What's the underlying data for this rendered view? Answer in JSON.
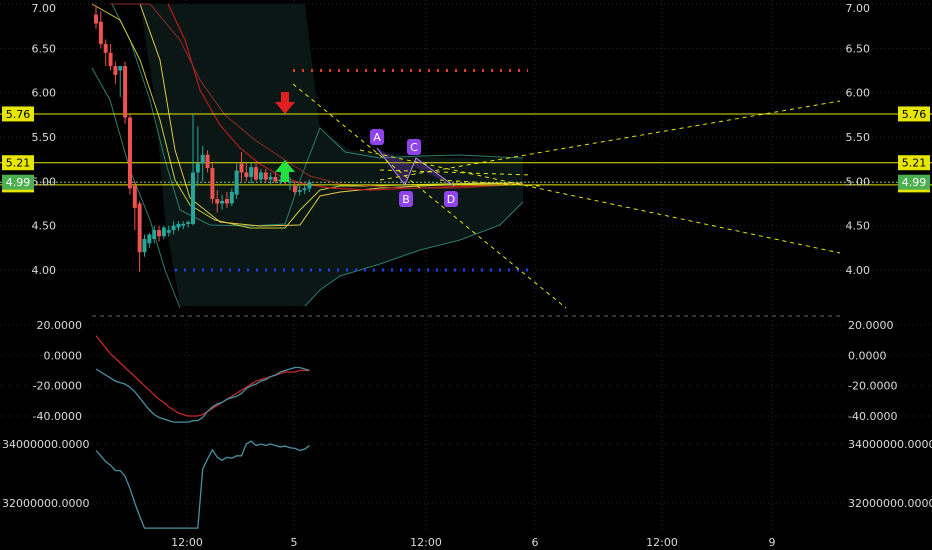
{
  "chart_data": {
    "type": "candlestick",
    "colors": {
      "up": "#26a69a",
      "down": "#ef5350",
      "hline": "#e6e600",
      "last": "#4caf50",
      "point": "#8e44ec"
    },
    "x_ticks": [
      "12:00",
      "5",
      "12:00",
      "6",
      "12:00",
      "9"
    ],
    "price": {
      "y_ticks": [
        "7.00",
        "6.50",
        "6.00",
        "5.50",
        "5.00",
        "4.50",
        "4.00"
      ],
      "y_tick_values": [
        7.0,
        6.5,
        6.0,
        5.5,
        5.0,
        4.5,
        4.0
      ],
      "ylim": [
        3.53,
        7.04
      ],
      "levels": [
        {
          "label": "5.76",
          "value": 5.76
        },
        {
          "label": "5.21",
          "value": 5.21
        },
        {
          "label": "4.96",
          "value": 4.96
        }
      ],
      "last_price": {
        "label": "4.99",
        "value": 4.99
      },
      "target_high": 6.25,
      "target_low": 4.0,
      "pattern_points": [
        "A",
        "B",
        "C",
        "D"
      ],
      "candles": [
        [
          6.88,
          6.98,
          6.72,
          6.78
        ],
        [
          6.8,
          6.92,
          6.5,
          6.55
        ],
        [
          6.55,
          6.6,
          6.3,
          6.45
        ],
        [
          6.45,
          6.55,
          6.25,
          6.3
        ],
        [
          6.3,
          6.35,
          6.1,
          6.2
        ],
        [
          6.25,
          6.3,
          5.95,
          6.3
        ],
        [
          6.3,
          6.35,
          5.65,
          5.72
        ],
        [
          5.72,
          5.75,
          4.85,
          4.92
        ],
        [
          4.95,
          5.0,
          4.45,
          4.7
        ],
        [
          4.75,
          4.78,
          3.98,
          4.2
        ],
        [
          4.2,
          4.4,
          4.15,
          4.35
        ],
        [
          4.3,
          4.42,
          4.25,
          4.4
        ],
        [
          4.35,
          4.5,
          4.3,
          4.45
        ],
        [
          4.45,
          4.5,
          4.32,
          4.38
        ],
        [
          4.38,
          4.5,
          4.35,
          4.48
        ],
        [
          4.42,
          4.5,
          4.38,
          4.45
        ],
        [
          4.45,
          4.55,
          4.4,
          4.5
        ],
        [
          4.48,
          4.55,
          4.44,
          4.52
        ],
        [
          4.5,
          4.55,
          4.46,
          4.52
        ],
        [
          4.52,
          4.56,
          4.48,
          4.54
        ],
        [
          4.52,
          5.76,
          4.5,
          5.1
        ],
        [
          5.1,
          5.62,
          4.95,
          5.2
        ],
        [
          5.2,
          5.4,
          5.0,
          5.3
        ],
        [
          5.3,
          5.35,
          5.1,
          5.15
        ],
        [
          5.15,
          5.2,
          4.75,
          4.8
        ],
        [
          4.8,
          4.9,
          4.65,
          4.75
        ],
        [
          4.75,
          4.85,
          4.68,
          4.78
        ],
        [
          4.8,
          4.88,
          4.7,
          4.75
        ],
        [
          4.75,
          4.92,
          4.72,
          4.88
        ],
        [
          4.85,
          5.2,
          4.8,
          5.12
        ],
        [
          5.2,
          5.33,
          5.0,
          5.1
        ],
        [
          5.1,
          5.2,
          5.0,
          5.05
        ],
        [
          5.05,
          5.2,
          4.98,
          5.16
        ],
        [
          5.16,
          5.22,
          5.0,
          5.02
        ],
        [
          5.02,
          5.14,
          4.98,
          5.1
        ],
        [
          5.1,
          5.14,
          4.98,
          5.02
        ],
        [
          5.02,
          5.1,
          4.97,
          5.05
        ],
        [
          5.05,
          5.1,
          4.98,
          5.0
        ],
        [
          5.0,
          5.07,
          4.96,
          5.02
        ],
        [
          5.02,
          5.06,
          4.96,
          4.99
        ],
        [
          4.99,
          5.05,
          4.9,
          5.0
        ],
        [
          4.95,
          5.0,
          4.85,
          4.88
        ],
        [
          4.88,
          4.95,
          4.84,
          4.9
        ],
        [
          4.9,
          4.96,
          4.86,
          4.92
        ],
        [
          4.92,
          5.02,
          4.88,
          4.99
        ]
      ]
    },
    "oscillator": {
      "y_ticks": [
        "20.0000",
        "0.0000",
        "-20.0000",
        "-40.0000"
      ],
      "y_tick_values": [
        20,
        0,
        -20,
        -40
      ],
      "ylim": [
        -50,
        23
      ],
      "series": [
        {
          "color": "#c62828",
          "values": [
            13,
            9,
            5,
            1,
            -2,
            -5,
            -8,
            -11,
            -14,
            -17,
            -20,
            -23,
            -26,
            -29,
            -31,
            -34,
            -36,
            -38,
            -39,
            -40,
            -40,
            -40,
            -39,
            -37,
            -35,
            -33,
            -31,
            -29,
            -27,
            -25,
            -23,
            -21,
            -19,
            -17,
            -16,
            -15,
            -14,
            -13,
            -12,
            -11,
            -11,
            -11,
            -10,
            -10,
            -10
          ]
        },
        {
          "color": "#4a90a4",
          "values": [
            -9,
            -11,
            -13,
            -15,
            -17,
            -18,
            -19,
            -21,
            -24,
            -28,
            -32,
            -36,
            -39,
            -41,
            -42,
            -43,
            -44,
            -44,
            -44,
            -44,
            -43,
            -43,
            -41,
            -37,
            -34,
            -32,
            -31,
            -29,
            -28,
            -27,
            -25,
            -22,
            -20,
            -19,
            -17,
            -16,
            -14,
            -13,
            -11,
            -10,
            -9,
            -8,
            -8,
            -9,
            -10
          ]
        }
      ]
    },
    "volume": {
      "y_ticks": [
        "34000000.0000",
        "32000000.0000"
      ],
      "y_tick_values": [
        34000000,
        32000000
      ],
      "ylim": [
        30950000,
        34200000
      ],
      "series": [
        {
          "color": "#4a90a4",
          "values": [
            33780000,
            33600000,
            33400000,
            33280000,
            33100000,
            33100000,
            32900000,
            32500000,
            32000000,
            31550000,
            31150000,
            31150000,
            31150000,
            31150000,
            31150000,
            31150000,
            31150000,
            31150000,
            31150000,
            31150000,
            31150000,
            31150000,
            33150000,
            33500000,
            33800000,
            33550000,
            33450000,
            33550000,
            33520000,
            33600000,
            33600000,
            34000000,
            34100000,
            33950000,
            34000000,
            33950000,
            34000000,
            33950000,
            33900000,
            33930000,
            33870000,
            33850000,
            33780000,
            33820000,
            33950000
          ]
        }
      ]
    }
  }
}
